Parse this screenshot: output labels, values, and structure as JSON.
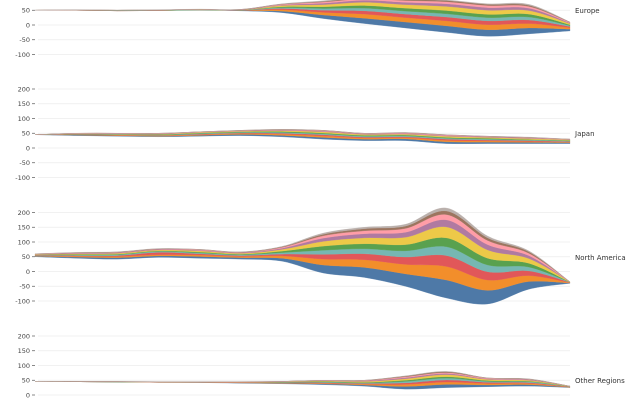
{
  "chart_data": {
    "type": "area",
    "subtype": "streamgraph",
    "grid": true,
    "yticks": [
      200,
      150,
      100,
      50,
      0,
      -50,
      -100
    ],
    "colors": [
      "#4e79a7",
      "#f28e2b",
      "#e15759",
      "#76b7b2",
      "#59a14f",
      "#edc948",
      "#b07aa1",
      "#ff9da7",
      "#9c755f",
      "#bab0ac"
    ],
    "panels": [
      {
        "region": "Europe",
        "baseline": [
          50,
          50,
          48,
          49,
          50,
          48,
          42,
          22,
          5,
          -10,
          -25,
          -38,
          -30,
          -20
        ],
        "series": [
          [
            0,
            0,
            0,
            0,
            1,
            1,
            5,
            12,
            18,
            20,
            22,
            22,
            20,
            6
          ],
          [
            0,
            0,
            0,
            0,
            0,
            1,
            5,
            9,
            14,
            15,
            17,
            17,
            15,
            5
          ],
          [
            0,
            0,
            1,
            0,
            0,
            0,
            4,
            7,
            11,
            12,
            13,
            13,
            12,
            4
          ],
          [
            0,
            0,
            0,
            1,
            0,
            1,
            3,
            6,
            9,
            10,
            11,
            11,
            10,
            3
          ],
          [
            0,
            1,
            1,
            1,
            1,
            0,
            3,
            6,
            9,
            10,
            11,
            11,
            10,
            3
          ],
          [
            0,
            0,
            0,
            0,
            1,
            0,
            4,
            7,
            11,
            12,
            14,
            14,
            12,
            4
          ],
          [
            0,
            0,
            0,
            0,
            0,
            1,
            2,
            5,
            7,
            8,
            9,
            9,
            8,
            2
          ],
          [
            0,
            0,
            0,
            0,
            0,
            0,
            2,
            4,
            5,
            6,
            7,
            7,
            6,
            2
          ],
          [
            0,
            0,
            0,
            0,
            0,
            1,
            1,
            2,
            4,
            4,
            4,
            4,
            4,
            1
          ],
          [
            1,
            1,
            1,
            1,
            1,
            0,
            1,
            2,
            2,
            3,
            2,
            2,
            3,
            0
          ]
        ]
      },
      {
        "region": "Japan",
        "baseline": [
          45,
          42,
          40,
          38,
          40,
          42,
          38,
          30,
          25,
          25,
          15,
          15,
          15,
          15
        ],
        "series": [
          [
            0,
            2,
            2,
            2,
            3,
            4,
            5,
            6,
            5,
            6,
            6,
            5,
            4,
            3
          ],
          [
            0,
            1,
            2,
            2,
            2,
            3,
            4,
            5,
            4,
            4,
            5,
            4,
            3,
            2
          ],
          [
            0,
            1,
            1,
            1,
            2,
            2,
            3,
            4,
            3,
            3,
            4,
            3,
            3,
            2
          ],
          [
            0,
            1,
            1,
            1,
            2,
            2,
            3,
            3,
            3,
            3,
            3,
            3,
            2,
            2
          ],
          [
            0,
            1,
            1,
            2,
            2,
            2,
            3,
            3,
            3,
            3,
            3,
            3,
            2,
            2
          ],
          [
            0,
            1,
            1,
            1,
            2,
            2,
            3,
            4,
            3,
            3,
            4,
            3,
            3,
            2
          ],
          [
            0,
            0,
            1,
            1,
            1,
            1,
            2,
            2,
            2,
            2,
            2,
            2,
            2,
            1
          ],
          [
            0,
            1,
            1,
            1,
            1,
            1,
            1,
            2,
            1,
            2,
            2,
            1,
            1,
            1
          ],
          [
            0,
            0,
            0,
            1,
            0,
            1,
            1,
            1,
            1,
            1,
            1,
            1,
            1,
            0
          ],
          [
            0,
            0,
            0,
            0,
            0,
            0,
            0,
            0,
            0,
            1,
            0,
            0,
            1,
            0
          ]
        ]
      },
      {
        "region": "North America",
        "baseline": [
          50,
          45,
          42,
          48,
          45,
          42,
          35,
          -5,
          -20,
          -50,
          -90,
          -110,
          -60,
          -40
        ],
        "series": [
          [
            2,
            4,
            5,
            5,
            6,
            5,
            10,
            27,
            34,
            42,
            61,
            46,
            26,
            1
          ],
          [
            2,
            3,
            4,
            4,
            5,
            4,
            8,
            20,
            26,
            32,
            46,
            35,
            20,
            1
          ],
          [
            1,
            2,
            3,
            8,
            4,
            3,
            6,
            16,
            20,
            25,
            37,
            28,
            16,
            1
          ],
          [
            1,
            2,
            3,
            3,
            3,
            3,
            5,
            14,
            17,
            21,
            30,
            23,
            13,
            1
          ],
          [
            1,
            2,
            2,
            2,
            3,
            2,
            5,
            14,
            17,
            21,
            30,
            23,
            13,
            0
          ],
          [
            1,
            2,
            3,
            3,
            4,
            3,
            6,
            16,
            20,
            25,
            37,
            28,
            16,
            1
          ],
          [
            1,
            2,
            2,
            2,
            2,
            2,
            4,
            11,
            14,
            17,
            24,
            18,
            10,
            0
          ],
          [
            1,
            1,
            1,
            1,
            2,
            1,
            3,
            8,
            10,
            13,
            18,
            14,
            8,
            0
          ],
          [
            0,
            1,
            1,
            1,
            1,
            1,
            2,
            5,
            7,
            8,
            12,
            9,
            5,
            0
          ],
          [
            0,
            1,
            1,
            1,
            0,
            1,
            1,
            4,
            5,
            6,
            10,
            6,
            3,
            0
          ]
        ]
      },
      {
        "region": "Other Regions",
        "baseline": [
          45,
          45,
          44,
          43,
          42,
          40,
          38,
          35,
          30,
          20,
          25,
          28,
          30,
          25
        ],
        "series": [
          [
            0,
            0,
            0,
            0,
            1,
            1,
            2,
            3,
            4,
            9,
            11,
            6,
            5,
            1
          ],
          [
            0,
            0,
            0,
            0,
            0,
            1,
            1,
            2,
            3,
            7,
            8,
            5,
            4,
            1
          ],
          [
            0,
            0,
            0,
            0,
            0,
            1,
            1,
            2,
            2,
            5,
            7,
            4,
            3,
            1
          ],
          [
            0,
            0,
            0,
            0,
            0,
            0,
            1,
            2,
            2,
            5,
            6,
            3,
            3,
            1
          ],
          [
            0,
            0,
            1,
            0,
            0,
            0,
            1,
            2,
            2,
            4,
            5,
            3,
            2,
            0
          ],
          [
            0,
            0,
            0,
            1,
            1,
            1,
            1,
            2,
            3,
            5,
            7,
            4,
            3,
            1
          ],
          [
            0,
            0,
            0,
            0,
            0,
            0,
            1,
            1,
            2,
            4,
            4,
            2,
            2,
            0
          ],
          [
            0,
            0,
            0,
            0,
            0,
            1,
            0,
            1,
            1,
            3,
            3,
            2,
            1,
            0
          ],
          [
            0,
            1,
            1,
            1,
            1,
            0,
            0,
            0,
            1,
            2,
            3,
            1,
            1,
            0
          ],
          [
            0,
            0,
            0,
            0,
            0,
            0,
            0,
            0,
            0,
            1,
            1,
            0,
            1,
            0
          ]
        ]
      }
    ]
  }
}
